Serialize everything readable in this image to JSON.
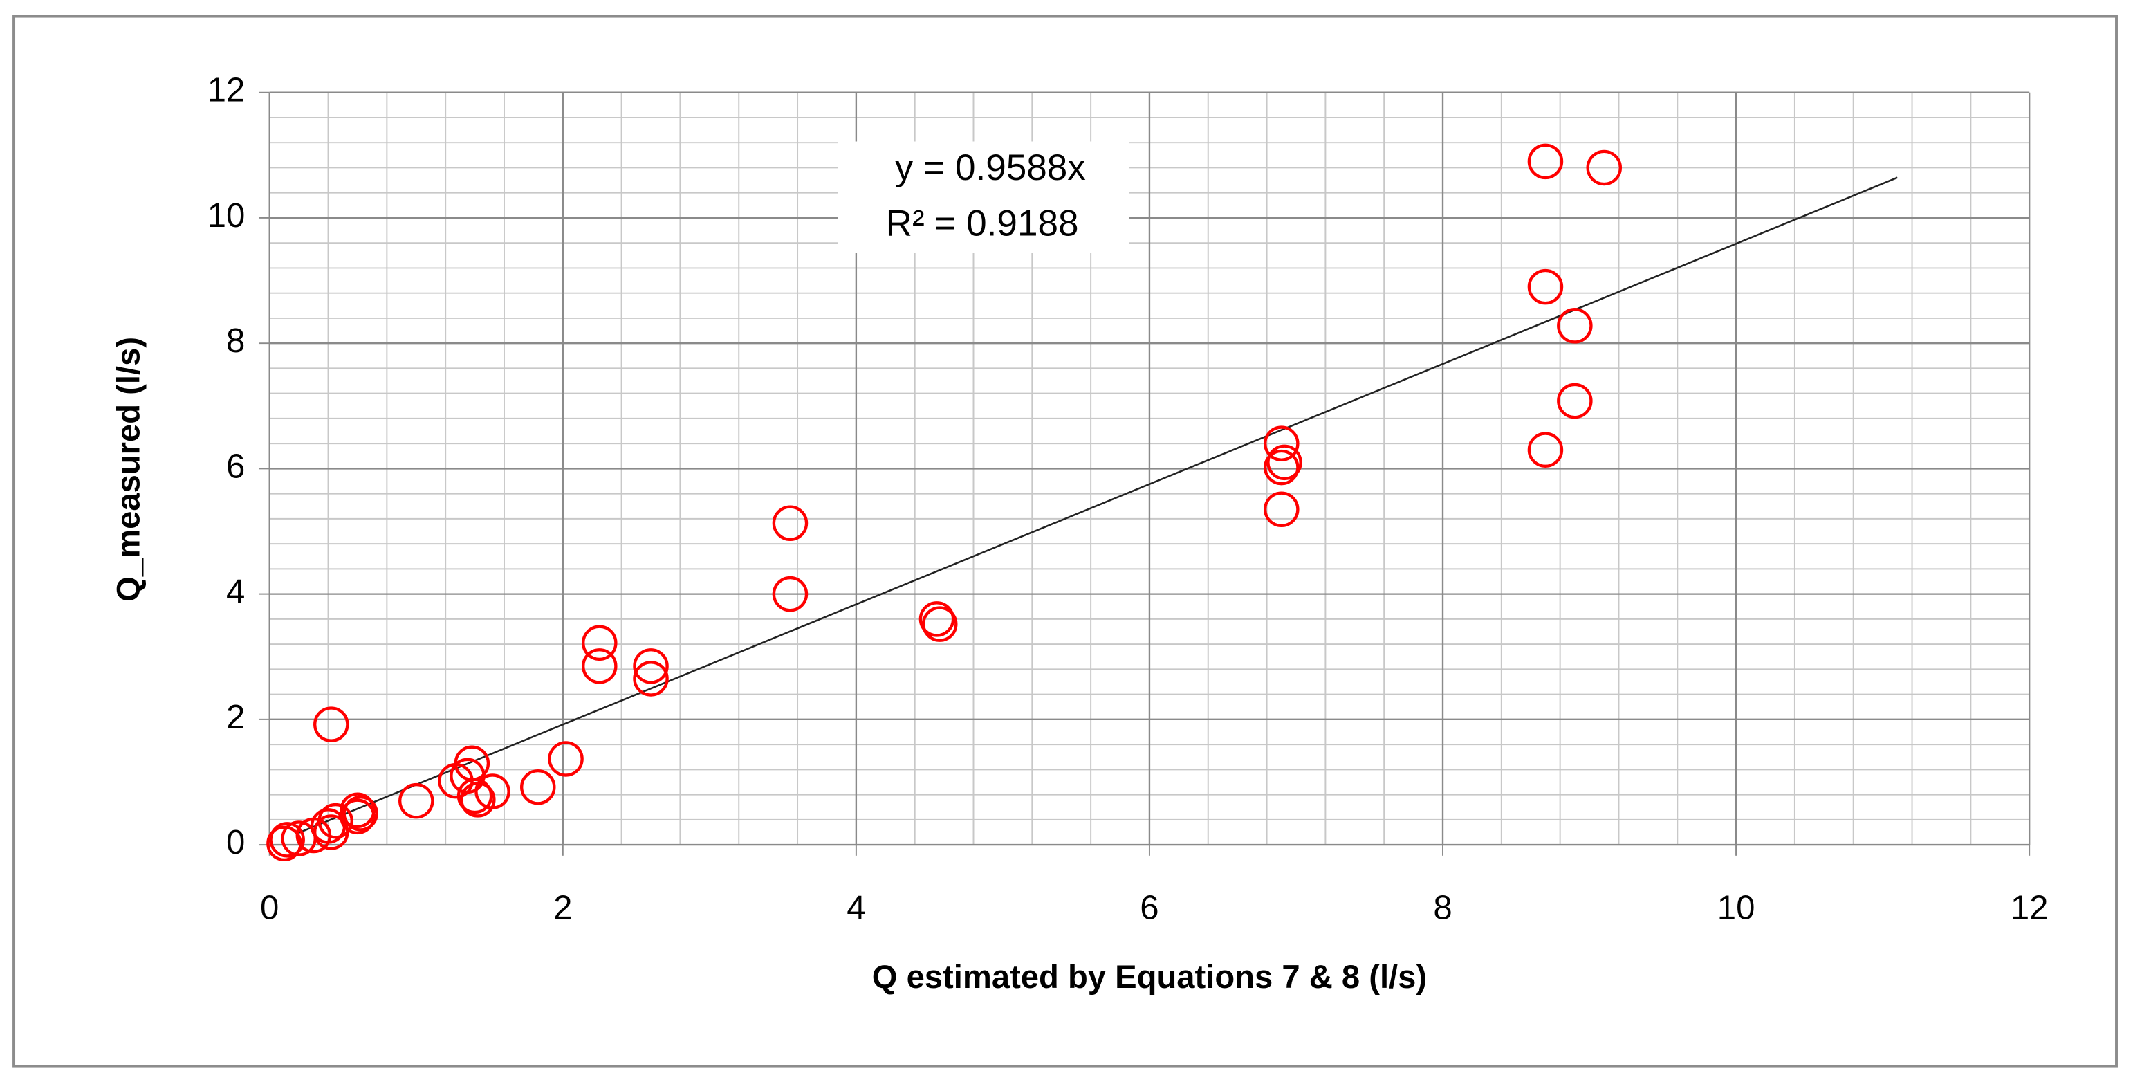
{
  "chart_data": {
    "type": "scatter",
    "x_label": "Q estimated by Equations 7 & 8 (l/s)",
    "y_label": "Q_measured (l/s)",
    "equation": "y = 0.9588x",
    "r_squared_label": "R² = 0.9188",
    "trendline": {
      "slope": 0.9588,
      "x_range": [
        0.2,
        11.1
      ],
      "color": "#222222"
    },
    "series": [
      {
        "name": "Q_measured",
        "color": "#ff0000",
        "x": [
          0.1,
          0.12,
          0.2,
          0.3,
          0.4,
          0.42,
          0.45,
          0.42,
          0.6,
          0.6,
          0.62,
          1.0,
          1.27,
          1.38,
          1.4,
          1.42,
          1.52,
          1.35,
          1.83,
          2.02,
          2.25,
          2.25,
          2.6,
          2.6,
          3.55,
          3.55,
          4.55,
          4.57,
          6.9,
          6.92,
          6.9,
          6.9,
          8.7,
          9.1,
          8.7,
          8.9,
          8.9,
          8.7
        ],
        "values": [
          0.02,
          0.08,
          0.1,
          0.15,
          0.3,
          0.2,
          0.38,
          1.92,
          0.45,
          0.55,
          0.5,
          0.7,
          1.02,
          1.3,
          0.78,
          0.72,
          0.85,
          1.1,
          0.92,
          1.37,
          3.22,
          2.85,
          2.85,
          2.65,
          5.13,
          4.0,
          3.6,
          3.52,
          6.4,
          6.1,
          6.02,
          5.35,
          10.9,
          10.8,
          8.9,
          8.28,
          7.08,
          6.3
        ]
      }
    ],
    "xlim": [
      0,
      12
    ],
    "ylim": [
      0,
      12
    ],
    "xticks": [
      0,
      2,
      4,
      6,
      8,
      10,
      12
    ],
    "yticks": [
      0,
      2,
      4,
      6,
      8,
      10,
      12
    ],
    "grid": {
      "major": true,
      "minor_divisions": 5
    }
  }
}
